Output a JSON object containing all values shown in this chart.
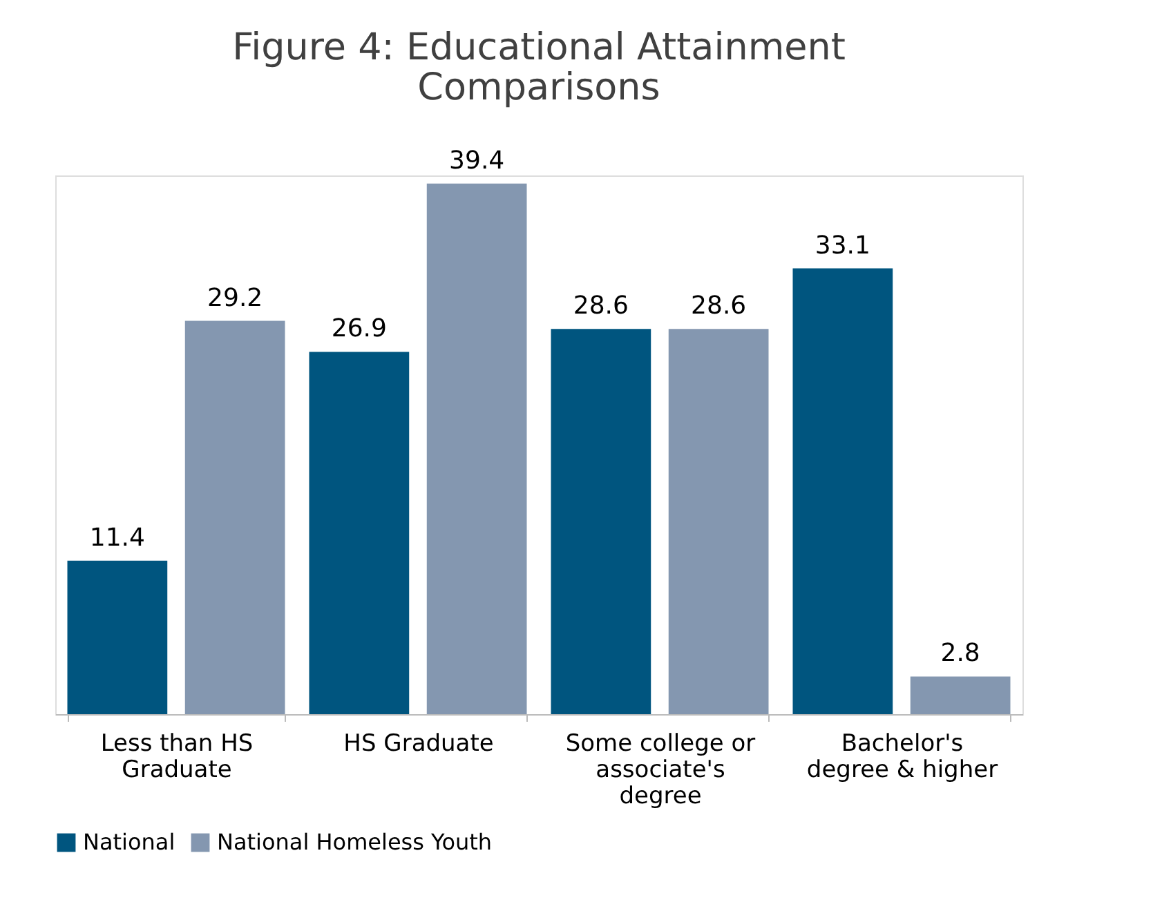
{
  "chart_data": {
    "type": "bar",
    "title": "Figure 4: Educational Attainment Comparisons",
    "categories": [
      "Less than HS Graduate",
      "HS Graduate",
      "Some college or associate's degree",
      "Bachelor's degree & higher"
    ],
    "series": [
      {
        "name": "National",
        "color": "#00557f",
        "values": [
          11.4,
          26.9,
          28.6,
          33.1
        ]
      },
      {
        "name": "National Homeless Youth",
        "color": "#8497b0",
        "values": [
          29.2,
          39.4,
          28.6,
          2.8
        ]
      }
    ],
    "data_labels": true,
    "legend": "bottom",
    "grid": false
  }
}
